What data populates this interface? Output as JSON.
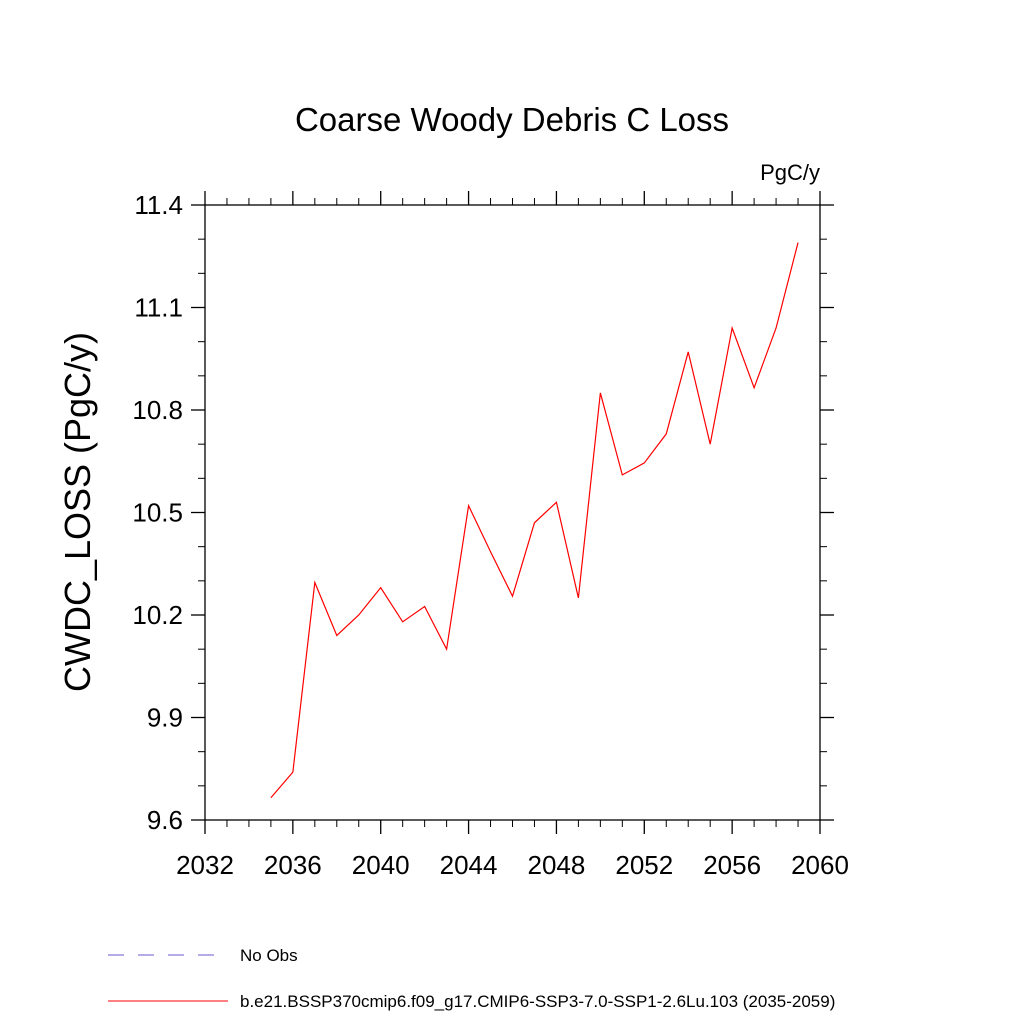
{
  "chart_data": {
    "type": "line",
    "title": "Coarse Woody Debris C Loss",
    "units": "PgC/y",
    "ylabel": "CWDC_LOSS  (PgC/y)",
    "xlabel": "",
    "xlim": [
      2032,
      2060
    ],
    "ylim": [
      9.6,
      11.4
    ],
    "x_ticks": [
      2032,
      2036,
      2040,
      2044,
      2048,
      2052,
      2056,
      2060
    ],
    "x_tick_labels": [
      "2032",
      "2036",
      "2040",
      "2044",
      "2048",
      "2052",
      "2056",
      "2060"
    ],
    "y_ticks": [
      9.6,
      9.9,
      10.2,
      10.5,
      10.8,
      11.1,
      11.4
    ],
    "y_tick_labels": [
      "9.6",
      "9.9",
      "10.2",
      "10.5",
      "10.8",
      "11.1",
      "11.4"
    ],
    "grid": false,
    "legend_position": "bottom",
    "series": [
      {
        "name": "b.e21.BSSP370cmip6.f09_g17.CMIP6-SSP3-7.0-SSP1-2.6Lu.103 (2035-2059)",
        "color": "#ff0000",
        "style": "solid",
        "x": [
          2035,
          2036,
          2037,
          2038,
          2039,
          2040,
          2041,
          2042,
          2043,
          2044,
          2045,
          2046,
          2047,
          2048,
          2049,
          2050,
          2051,
          2052,
          2053,
          2054,
          2055,
          2056,
          2057,
          2058,
          2059
        ],
        "y": [
          9.665,
          9.74,
          10.295,
          10.14,
          10.2,
          10.28,
          10.18,
          10.225,
          10.1,
          10.52,
          10.385,
          10.255,
          10.47,
          10.53,
          10.25,
          10.85,
          10.61,
          10.645,
          10.73,
          10.97,
          10.7,
          11.04,
          10.865,
          11.04,
          11.29
        ]
      }
    ],
    "legend": [
      {
        "label": "No Obs",
        "color": "#6a5acd",
        "style": "dashed"
      },
      {
        "label": "b.e21.BSSP370cmip6.f09_g17.CMIP6-SSP3-7.0-SSP1-2.6Lu.103 (2035-2059)",
        "color": "#ff0000",
        "style": "solid"
      }
    ]
  }
}
